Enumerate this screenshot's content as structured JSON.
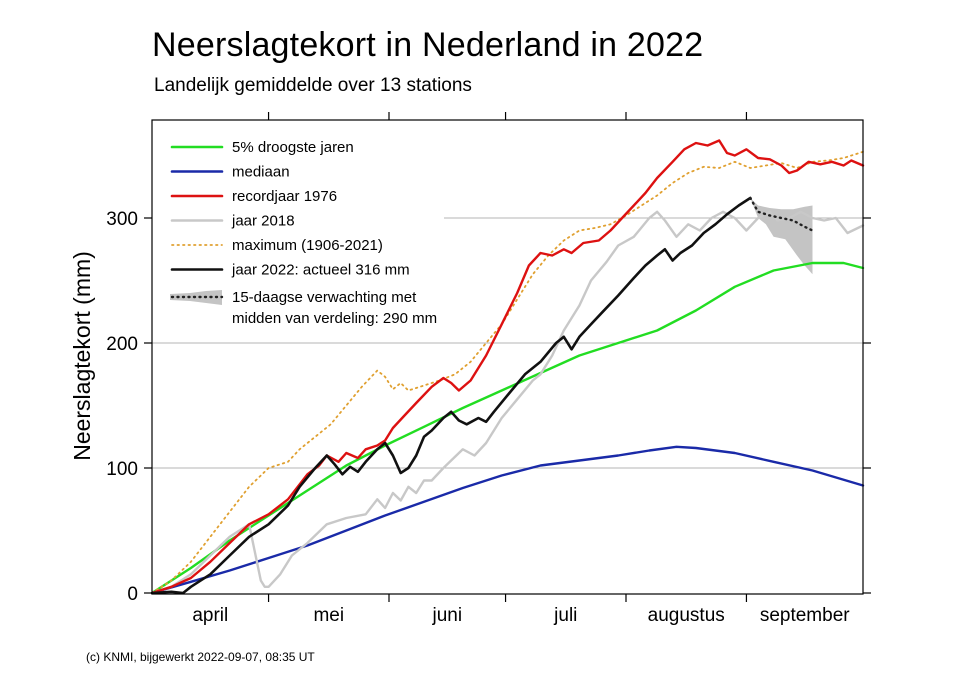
{
  "title": "Neerslagtekort in Nederland in 2022",
  "subtitle": "Landelijk gemiddelde over 13 stations",
  "credit": "(c) KNMI, bijgewerkt 2022-09-07, 08:35 UT",
  "chart_data": {
    "type": "line",
    "ylabel": "Neerslagtekort (mm)",
    "xlim": [
      0,
      183
    ],
    "ylim": [
      0,
      380
    ],
    "yticks": [
      0,
      100,
      200,
      300
    ],
    "ytick_labels": [
      "0",
      "100",
      "200",
      "300"
    ],
    "month_boundaries": [
      30,
      61,
      91,
      122,
      153
    ],
    "month_labels": [
      {
        "label": "april",
        "center": 15
      },
      {
        "label": "mei",
        "center": 45.5
      },
      {
        "label": "juni",
        "center": 76
      },
      {
        "label": "juli",
        "center": 106.5
      },
      {
        "label": "augustus",
        "center": 137.5
      },
      {
        "label": "september",
        "center": 168
      }
    ],
    "grid": "horizontal",
    "legend_position": "top-left",
    "series": [
      {
        "name": "5% droogste jaren",
        "color": "#22dd22",
        "style": "solid",
        "points": [
          [
            0,
            0
          ],
          [
            10,
            20
          ],
          [
            20,
            42
          ],
          [
            30,
            62
          ],
          [
            40,
            82
          ],
          [
            50,
            102
          ],
          [
            60,
            118
          ],
          [
            70,
            133
          ],
          [
            80,
            148
          ],
          [
            90,
            162
          ],
          [
            100,
            176
          ],
          [
            110,
            190
          ],
          [
            120,
            200
          ],
          [
            130,
            210
          ],
          [
            140,
            226
          ],
          [
            150,
            245
          ],
          [
            160,
            258
          ],
          [
            170,
            264
          ],
          [
            178,
            264
          ],
          [
            183,
            260
          ]
        ]
      },
      {
        "name": "mediaan",
        "color": "#1a2aa8",
        "style": "solid",
        "points": [
          [
            0,
            0
          ],
          [
            10,
            9
          ],
          [
            20,
            18
          ],
          [
            30,
            28
          ],
          [
            40,
            38
          ],
          [
            50,
            50
          ],
          [
            60,
            62
          ],
          [
            70,
            73
          ],
          [
            80,
            84
          ],
          [
            90,
            94
          ],
          [
            100,
            102
          ],
          [
            110,
            106
          ],
          [
            120,
            110
          ],
          [
            128,
            114
          ],
          [
            135,
            117
          ],
          [
            140,
            116
          ],
          [
            150,
            112
          ],
          [
            160,
            105
          ],
          [
            170,
            98
          ],
          [
            183,
            86
          ]
        ]
      },
      {
        "name": "recordjaar 1976",
        "color": "#dd1111",
        "style": "solid",
        "points": [
          [
            0,
            0
          ],
          [
            5,
            5
          ],
          [
            10,
            12
          ],
          [
            15,
            25
          ],
          [
            20,
            40
          ],
          [
            25,
            55
          ],
          [
            30,
            63
          ],
          [
            35,
            75
          ],
          [
            40,
            95
          ],
          [
            43,
            102
          ],
          [
            45,
            110
          ],
          [
            48,
            105
          ],
          [
            50,
            112
          ],
          [
            53,
            108
          ],
          [
            55,
            115
          ],
          [
            58,
            118
          ],
          [
            60,
            122
          ],
          [
            62,
            132
          ],
          [
            65,
            142
          ],
          [
            68,
            152
          ],
          [
            72,
            165
          ],
          [
            75,
            172
          ],
          [
            77,
            168
          ],
          [
            79,
            162
          ],
          [
            82,
            170
          ],
          [
            86,
            190
          ],
          [
            90,
            215
          ],
          [
            94,
            240
          ],
          [
            97,
            262
          ],
          [
            100,
            272
          ],
          [
            103,
            270
          ],
          [
            106,
            275
          ],
          [
            108,
            272
          ],
          [
            111,
            280
          ],
          [
            115,
            282
          ],
          [
            118,
            290
          ],
          [
            121,
            300
          ],
          [
            124,
            310
          ],
          [
            127,
            320
          ],
          [
            130,
            332
          ],
          [
            134,
            345
          ],
          [
            137,
            355
          ],
          [
            140,
            360
          ],
          [
            143,
            358
          ],
          [
            146,
            362
          ],
          [
            148,
            352
          ],
          [
            150,
            350
          ],
          [
            153,
            355
          ],
          [
            156,
            348
          ],
          [
            159,
            347
          ],
          [
            162,
            342
          ],
          [
            164,
            336
          ],
          [
            166,
            338
          ],
          [
            169,
            345
          ],
          [
            172,
            343
          ],
          [
            175,
            345
          ],
          [
            178,
            342
          ],
          [
            180,
            346
          ],
          [
            183,
            342
          ]
        ]
      },
      {
        "name": "jaar 2018",
        "color": "#c8c8c8",
        "style": "solid",
        "points": [
          [
            0,
            0
          ],
          [
            5,
            5
          ],
          [
            10,
            15
          ],
          [
            15,
            30
          ],
          [
            20,
            45
          ],
          [
            25,
            55
          ],
          [
            28,
            10
          ],
          [
            29,
            5
          ],
          [
            30,
            5
          ],
          [
            33,
            15
          ],
          [
            36,
            30
          ],
          [
            40,
            40
          ],
          [
            45,
            55
          ],
          [
            50,
            60
          ],
          [
            55,
            63
          ],
          [
            58,
            75
          ],
          [
            60,
            68
          ],
          [
            62,
            80
          ],
          [
            64,
            74
          ],
          [
            66,
            85
          ],
          [
            68,
            80
          ],
          [
            70,
            90
          ],
          [
            72,
            90
          ],
          [
            75,
            100
          ],
          [
            80,
            115
          ],
          [
            83,
            110
          ],
          [
            86,
            120
          ],
          [
            90,
            140
          ],
          [
            94,
            155
          ],
          [
            98,
            170
          ],
          [
            100,
            175
          ],
          [
            103,
            190
          ],
          [
            106,
            210
          ],
          [
            110,
            230
          ],
          [
            113,
            250
          ],
          [
            117,
            265
          ],
          [
            120,
            278
          ],
          [
            124,
            285
          ],
          [
            128,
            300
          ],
          [
            130,
            305
          ],
          [
            132,
            298
          ],
          [
            135,
            285
          ],
          [
            138,
            295
          ],
          [
            141,
            290
          ],
          [
            144,
            300
          ],
          [
            147,
            305
          ],
          [
            150,
            300
          ],
          [
            153,
            290
          ],
          [
            156,
            300
          ],
          [
            159,
            305
          ],
          [
            161,
            298
          ],
          [
            164,
            300
          ],
          [
            167,
            305
          ],
          [
            170,
            300
          ],
          [
            173,
            298
          ],
          [
            176,
            300
          ],
          [
            179,
            288
          ],
          [
            183,
            294
          ]
        ]
      },
      {
        "name": "maximum (1906-2021)",
        "color": "#e0a030",
        "style": "dotted",
        "points": [
          [
            0,
            0
          ],
          [
            5,
            10
          ],
          [
            10,
            25
          ],
          [
            15,
            45
          ],
          [
            20,
            65
          ],
          [
            25,
            85
          ],
          [
            30,
            100
          ],
          [
            35,
            105
          ],
          [
            38,
            115
          ],
          [
            42,
            125
          ],
          [
            46,
            135
          ],
          [
            50,
            150
          ],
          [
            54,
            165
          ],
          [
            58,
            178
          ],
          [
            60,
            173
          ],
          [
            62,
            163
          ],
          [
            64,
            168
          ],
          [
            66,
            162
          ],
          [
            70,
            166
          ],
          [
            74,
            170
          ],
          [
            78,
            175
          ],
          [
            82,
            185
          ],
          [
            86,
            200
          ],
          [
            90,
            215
          ],
          [
            94,
            235
          ],
          [
            98,
            255
          ],
          [
            102,
            270
          ],
          [
            106,
            282
          ],
          [
            110,
            290
          ],
          [
            114,
            292
          ],
          [
            118,
            295
          ],
          [
            122,
            302
          ],
          [
            126,
            310
          ],
          [
            130,
            318
          ],
          [
            134,
            328
          ],
          [
            138,
            336
          ],
          [
            142,
            341
          ],
          [
            146,
            340
          ],
          [
            150,
            345
          ],
          [
            154,
            340
          ],
          [
            158,
            342
          ],
          [
            162,
            344
          ],
          [
            166,
            340
          ],
          [
            170,
            345
          ],
          [
            174,
            346
          ],
          [
            178,
            348
          ],
          [
            183,
            353
          ]
        ]
      },
      {
        "name": "jaar 2022: actueel 316 mm",
        "color": "#111111",
        "style": "solid",
        "points": [
          [
            0,
            0
          ],
          [
            5,
            1
          ],
          [
            8,
            0
          ],
          [
            10,
            5
          ],
          [
            15,
            15
          ],
          [
            20,
            30
          ],
          [
            25,
            45
          ],
          [
            30,
            55
          ],
          [
            35,
            70
          ],
          [
            38,
            85
          ],
          [
            42,
            100
          ],
          [
            45,
            110
          ],
          [
            47,
            103
          ],
          [
            49,
            95
          ],
          [
            51,
            101
          ],
          [
            53,
            97
          ],
          [
            55,
            105
          ],
          [
            58,
            115
          ],
          [
            60,
            120
          ],
          [
            62,
            110
          ],
          [
            64,
            96
          ],
          [
            66,
            100
          ],
          [
            68,
            110
          ],
          [
            70,
            125
          ],
          [
            72,
            130
          ],
          [
            75,
            140
          ],
          [
            77,
            145
          ],
          [
            79,
            138
          ],
          [
            81,
            135
          ],
          [
            84,
            140
          ],
          [
            86,
            137
          ],
          [
            88,
            145
          ],
          [
            92,
            160
          ],
          [
            96,
            175
          ],
          [
            100,
            185
          ],
          [
            104,
            200
          ],
          [
            106,
            205
          ],
          [
            108,
            195
          ],
          [
            110,
            205
          ],
          [
            113,
            215
          ],
          [
            116,
            225
          ],
          [
            120,
            238
          ],
          [
            124,
            252
          ],
          [
            127,
            262
          ],
          [
            130,
            270
          ],
          [
            132,
            275
          ],
          [
            134,
            266
          ],
          [
            136,
            272
          ],
          [
            139,
            278
          ],
          [
            142,
            288
          ],
          [
            145,
            295
          ],
          [
            148,
            303
          ],
          [
            151,
            310
          ],
          [
            154,
            316
          ]
        ]
      }
    ],
    "forecast": {
      "name": "15-daagse verwachting met",
      "name_line2": "midden van verdeling: 290 mm",
      "median": [
        [
          154,
          316
        ],
        [
          156,
          305
        ],
        [
          159,
          302
        ],
        [
          162,
          300
        ],
        [
          165,
          298
        ],
        [
          168,
          293
        ],
        [
          170,
          290
        ]
      ],
      "upper": [
        [
          154,
          316
        ],
        [
          156,
          310
        ],
        [
          159,
          308
        ],
        [
          162,
          307
        ],
        [
          165,
          307
        ],
        [
          168,
          309
        ],
        [
          170,
          310
        ]
      ],
      "lower": [
        [
          154,
          316
        ],
        [
          156,
          300
        ],
        [
          158,
          295
        ],
        [
          160,
          285
        ],
        [
          163,
          283
        ],
        [
          166,
          270
        ],
        [
          168,
          262
        ],
        [
          170,
          255
        ]
      ]
    }
  }
}
